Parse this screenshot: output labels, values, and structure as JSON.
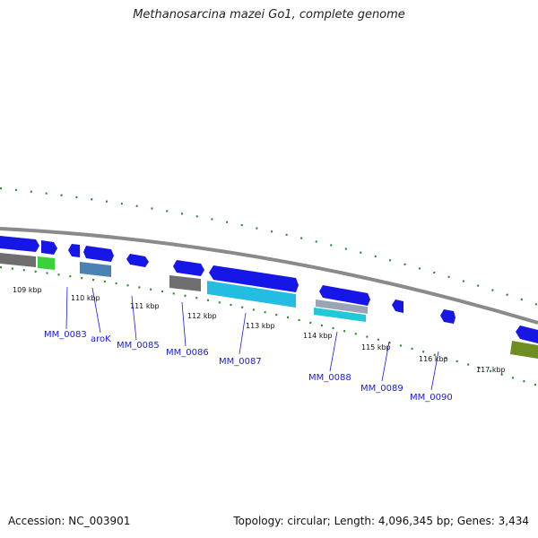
{
  "title": "Methanosarcina mazei Go1, complete genome",
  "footer": {
    "accession": "Accession: NC_003901",
    "summary": "Topology: circular; Length: 4,096,345 bp; Genes: 3,434"
  },
  "ticks": [
    "109 kbp",
    "110 kbp",
    "111 kbp",
    "112 kbp",
    "113 kbp",
    "114 kbp",
    "115 kbp",
    "116 kbp",
    "117 kbp"
  ],
  "genes": [
    "MM_0083",
    "aroK",
    "MM_0085",
    "MM_0086",
    "MM_0087",
    "MM_0088",
    "MM_0089",
    "MM_0090"
  ],
  "colors": {
    "backbone": "#8a8a8a",
    "cds": "#1616e6",
    "gc_skew_green": "#2a8a2a",
    "gray_feature": "#6e6e6e",
    "cyan_feature": "#22bde0",
    "steel_feature": "#4a82b4",
    "lime_feature": "#3ad23a",
    "olive_feature": "#6e8e24",
    "label_blue": "#1a1ae6"
  }
}
